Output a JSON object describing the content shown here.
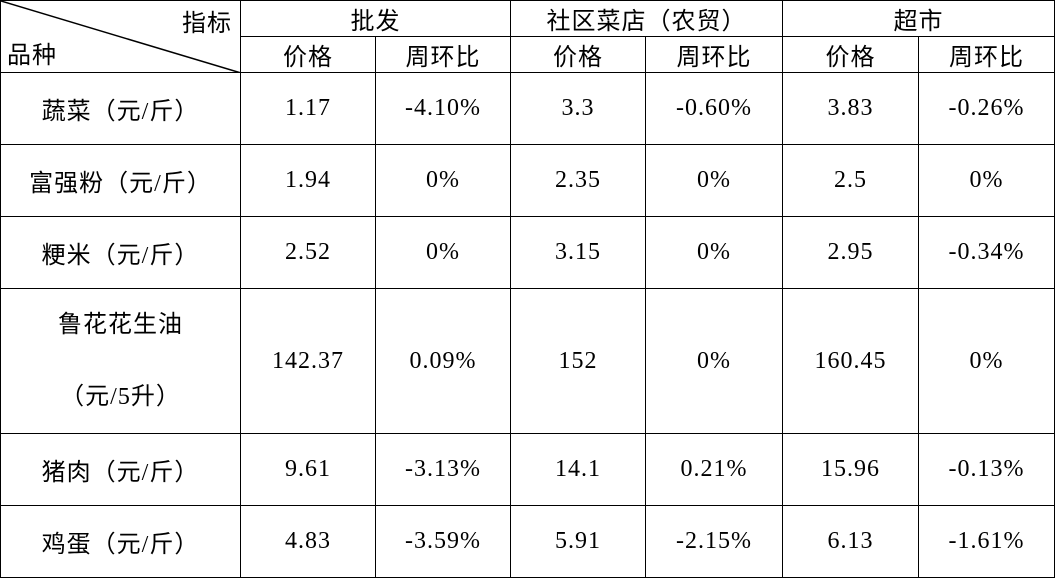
{
  "header": {
    "corner_top": "指标",
    "corner_bottom": "品种",
    "groups": [
      "批发",
      "社区菜店（农贸）",
      "超市"
    ],
    "subheaders": [
      "价格",
      "周环比",
      "价格",
      "周环比",
      "价格",
      "周环比"
    ]
  },
  "table": {
    "rows": [
      {
        "label": [
          "蔬菜（元/斤）"
        ],
        "cells": [
          "1.17",
          "-4.10%",
          "3.3",
          "-0.60%",
          "3.83",
          "-0.26%"
        ]
      },
      {
        "label": [
          "富强粉（元/斤）"
        ],
        "cells": [
          "1.94",
          "0%",
          "2.35",
          "0%",
          "2.5",
          "0%"
        ]
      },
      {
        "label": [
          "粳米（元/斤）"
        ],
        "cells": [
          "2.52",
          "0%",
          "3.15",
          "0%",
          "2.95",
          "-0.34%"
        ]
      },
      {
        "label": [
          "鲁花花生油",
          "（元/5升）"
        ],
        "cells": [
          "142.37",
          "0.09%",
          "152",
          "0%",
          "160.45",
          "0%"
        ]
      },
      {
        "label": [
          "猪肉（元/斤）"
        ],
        "cells": [
          "9.61",
          "-3.13%",
          "14.1",
          "0.21%",
          "15.96",
          "-0.13%"
        ]
      },
      {
        "label": [
          "鸡蛋（元/斤）"
        ],
        "cells": [
          "4.83",
          "-3.59%",
          "5.91",
          "-2.15%",
          "6.13",
          "-1.61%"
        ]
      }
    ]
  }
}
